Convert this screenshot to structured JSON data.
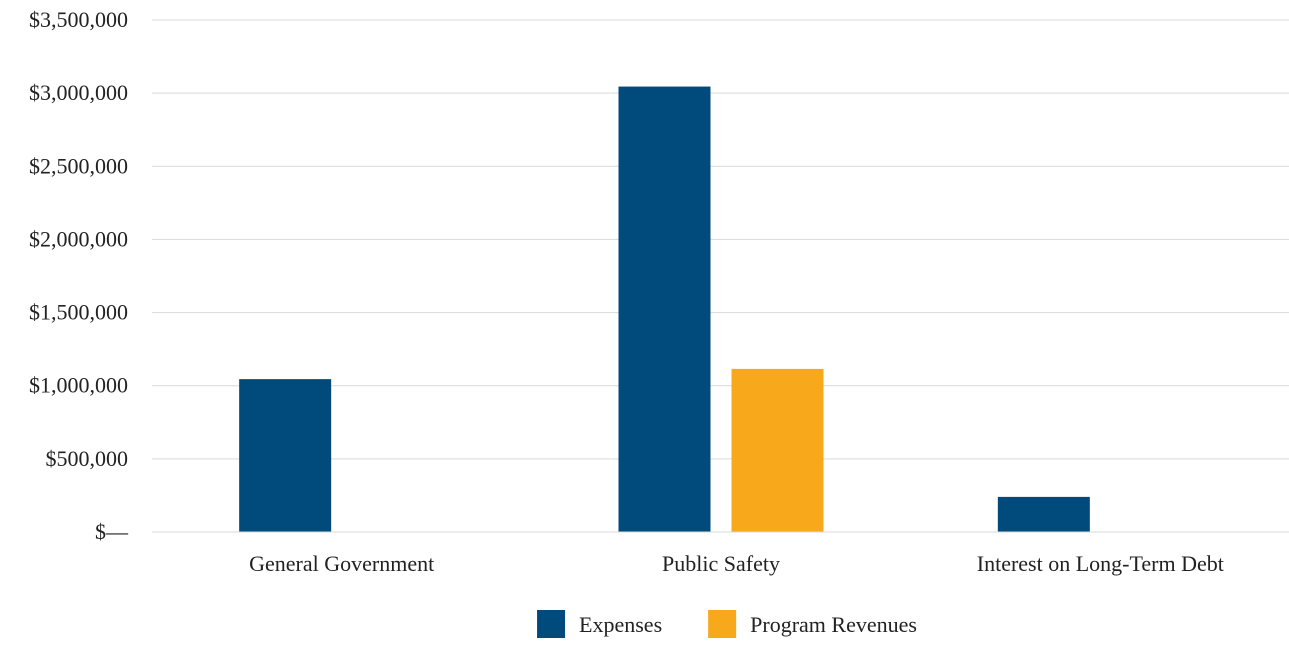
{
  "chart_data": {
    "type": "bar",
    "title": "",
    "xlabel": "",
    "ylabel": "",
    "categories": [
      "General Government",
      "Public Safety",
      "Interest on Long-Term Debt"
    ],
    "series": [
      {
        "name": "Expenses",
        "color": "#004B7C",
        "values": [
          1045000,
          3045000,
          240000
        ]
      },
      {
        "name": "Program Revenues",
        "color": "#F7A81B",
        "values": [
          0,
          1115000,
          0
        ]
      }
    ],
    "ylim": [
      0,
      3500000
    ],
    "y_ticks": [
      0,
      500000,
      1000000,
      1500000,
      2000000,
      2500000,
      3000000,
      3500000
    ],
    "y_tick_labels": [
      "$—",
      "$500,000",
      "$1,000,000",
      "$1,500,000",
      "$2,000,000",
      "$2,500,000",
      "$3,000,000",
      "$3,500,000"
    ],
    "grid": true,
    "legend_position": "bottom-center"
  }
}
